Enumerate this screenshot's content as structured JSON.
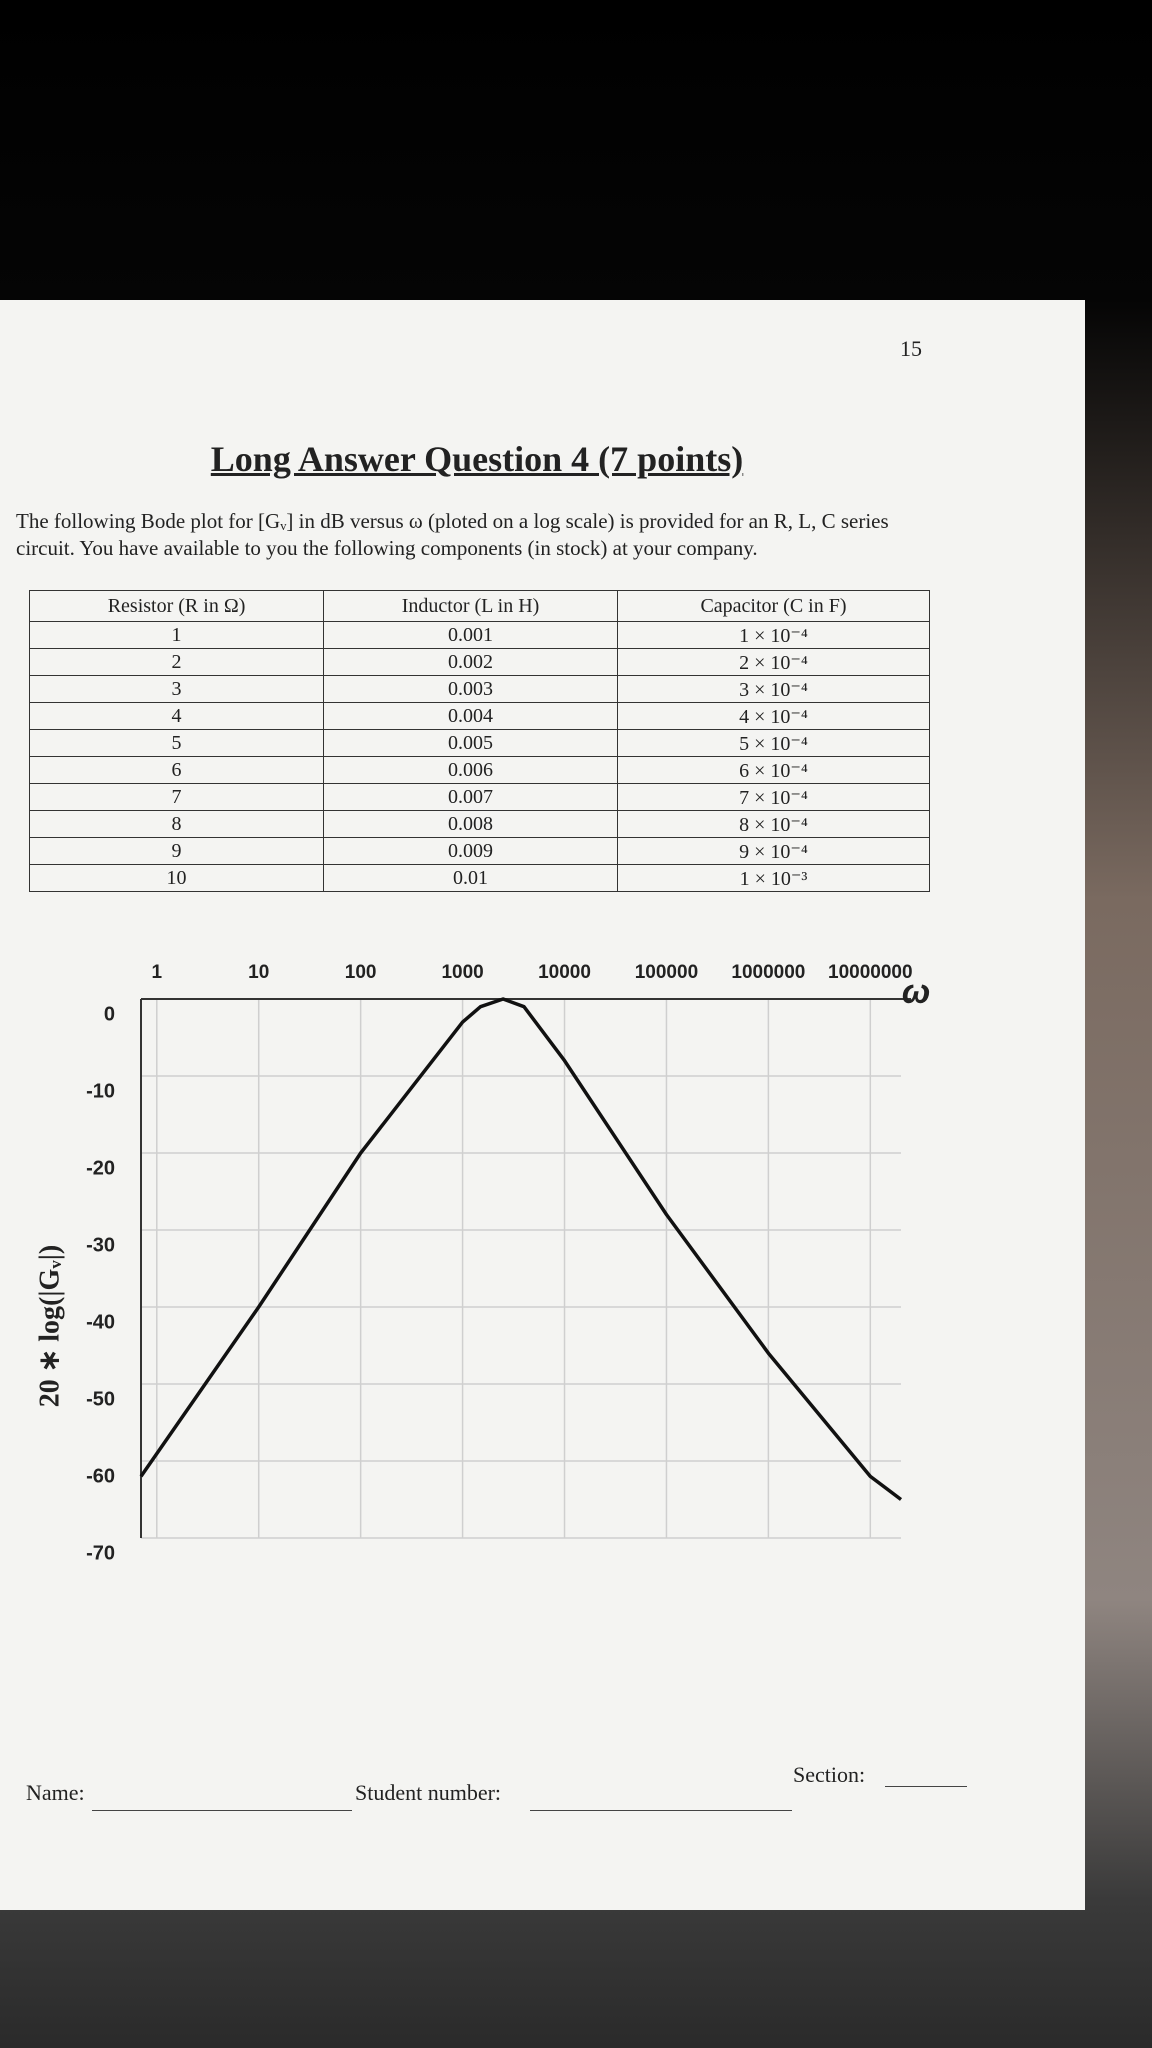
{
  "page_number": "15",
  "header": {
    "title": "Long Answer Question 4 (7 points)"
  },
  "intro": "The following Bode plot for [Gᵥ] in dB versus ω (ploted on a log scale) is provided for an R, L, C series circuit. You have available to you the following components (in stock) at your company.",
  "table": {
    "headers": [
      "Resistor (R in Ω)",
      "Inductor (L in H)",
      "Capacitor (C in F)"
    ],
    "rows": [
      [
        "1",
        "0.001",
        "1 × 10⁻⁴"
      ],
      [
        "2",
        "0.002",
        "2 × 10⁻⁴"
      ],
      [
        "3",
        "0.003",
        "3 × 10⁻⁴"
      ],
      [
        "4",
        "0.004",
        "4 × 10⁻⁴"
      ],
      [
        "5",
        "0.005",
        "5 × 10⁻⁴"
      ],
      [
        "6",
        "0.006",
        "6 × 10⁻⁴"
      ],
      [
        "7",
        "0.007",
        "7 × 10⁻⁴"
      ],
      [
        "8",
        "0.008",
        "8 × 10⁻⁴"
      ],
      [
        "9",
        "0.009",
        "9 × 10⁻⁴"
      ],
      [
        "10",
        "0.01",
        "1 × 10⁻³"
      ]
    ]
  },
  "chart_data": {
    "type": "line",
    "x_label": "ω",
    "y_label": "20 ∗ log(|Gᵥ|)",
    "x": [
      0.7,
      10,
      100,
      1000,
      1500,
      2500,
      4000,
      10000,
      100000,
      1000000,
      10000000,
      20000000
    ],
    "values": [
      -62,
      -40,
      -20,
      -3,
      -1,
      0,
      -1,
      -8,
      -28,
      -46,
      -62,
      -65
    ],
    "color": "#111111",
    "log_x": true,
    "grid": true,
    "xlim": [
      0.7,
      20000000
    ],
    "ylim": [
      -70,
      0
    ],
    "xticks": [
      1,
      10,
      100,
      1000,
      10000,
      100000,
      1000000,
      10000000
    ],
    "yticks": [
      0,
      -10,
      -20,
      -30,
      -40,
      -50,
      -60,
      -70
    ]
  },
  "footer": {
    "name_label": "Name:",
    "student_number_label": "Student number:",
    "section_label": "Section:"
  }
}
